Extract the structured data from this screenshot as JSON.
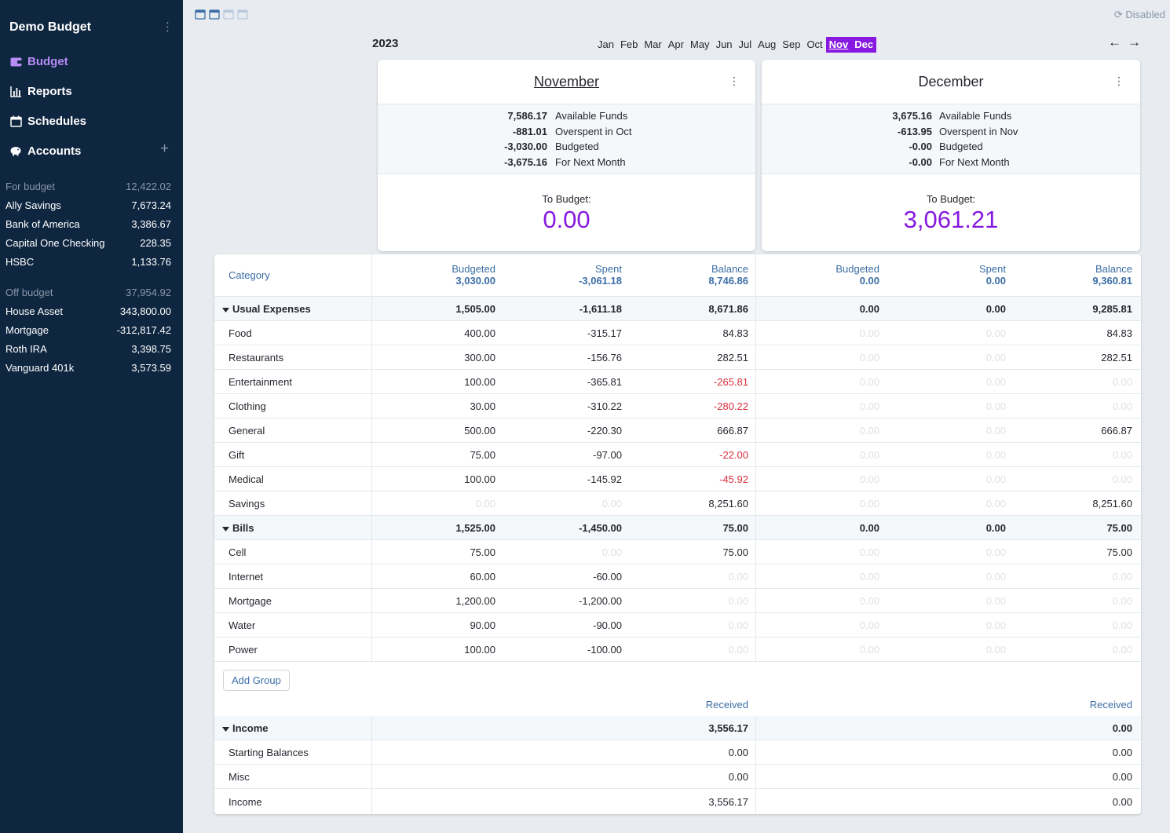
{
  "sidebar": {
    "title": "Demo Budget",
    "nav": [
      {
        "label": "Budget",
        "icon": "wallet-icon"
      },
      {
        "label": "Reports",
        "icon": "bar-chart-icon"
      },
      {
        "label": "Schedules",
        "icon": "calendar-icon"
      },
      {
        "label": "Accounts",
        "icon": "piggy-bank-icon"
      }
    ],
    "for_budget": {
      "label": "For budget",
      "total": "12,422.02",
      "accounts": [
        {
          "name": "Ally Savings",
          "balance": "7,673.24"
        },
        {
          "name": "Bank of America",
          "balance": "3,386.67"
        },
        {
          "name": "Capital One Checking",
          "balance": "228.35"
        },
        {
          "name": "HSBC",
          "balance": "1,133.76"
        }
      ]
    },
    "off_budget": {
      "label": "Off budget",
      "total": "37,954.92",
      "accounts": [
        {
          "name": "House Asset",
          "balance": "343,800.00"
        },
        {
          "name": "Mortgage",
          "balance": "-312,817.42"
        },
        {
          "name": "Roth IRA",
          "balance": "3,398.75"
        },
        {
          "name": "Vanguard 401k",
          "balance": "3,573.59"
        }
      ]
    }
  },
  "toolbar": {
    "sync_status": "Disabled"
  },
  "year": "2023",
  "months": [
    "Jan",
    "Feb",
    "Mar",
    "Apr",
    "May",
    "Jun",
    "Jul",
    "Aug",
    "Sep",
    "Oct",
    "Nov",
    "Dec"
  ],
  "selected_months": [
    "Nov",
    "Dec"
  ],
  "cards": [
    {
      "month": "November",
      "available": "7,586.17",
      "available_label": "Available Funds",
      "overspent": "-881.01",
      "overspent_label": "Overspent in Oct",
      "budgeted": "-3,030.00",
      "budgeted_label": "Budgeted",
      "next": "-3,675.16",
      "next_label": "For Next Month",
      "to_budget_label": "To Budget:",
      "to_budget": "0.00"
    },
    {
      "month": "December",
      "available": "3,675.16",
      "available_label": "Available Funds",
      "overspent": "-613.95",
      "overspent_label": "Overspent in Nov",
      "budgeted": "-0.00",
      "budgeted_label": "Budgeted",
      "next": "-0.00",
      "next_label": "For Next Month",
      "to_budget_label": "To Budget:",
      "to_budget": "3,061.21"
    }
  ],
  "table": {
    "category_header": "Category",
    "column_labels": {
      "budgeted": "Budgeted",
      "spent": "Spent",
      "balance": "Balance",
      "received": "Received"
    },
    "totals": [
      {
        "budgeted": "3,030.00",
        "spent": "-3,061.18",
        "balance": "8,746.86"
      },
      {
        "budgeted": "0.00",
        "spent": "0.00",
        "balance": "9,360.81"
      }
    ],
    "rows": [
      {
        "name": "Usual Expenses",
        "group": true,
        "m1": [
          "1,505.00",
          "-1,611.18",
          "8,671.86"
        ],
        "m2": [
          "0.00",
          "0.00",
          "9,285.81"
        ]
      },
      {
        "name": "Food",
        "m1": [
          "400.00",
          "-315.17",
          "84.83"
        ],
        "m2": [
          "0.00",
          "0.00",
          "84.83"
        ]
      },
      {
        "name": "Restaurants",
        "m1": [
          "300.00",
          "-156.76",
          "282.51"
        ],
        "m2": [
          "0.00",
          "0.00",
          "282.51"
        ]
      },
      {
        "name": "Entertainment",
        "m1": [
          "100.00",
          "-365.81",
          "-265.81"
        ],
        "m2": [
          "0.00",
          "0.00",
          "0.00"
        ]
      },
      {
        "name": "Clothing",
        "m1": [
          "30.00",
          "-310.22",
          "-280.22"
        ],
        "m2": [
          "0.00",
          "0.00",
          "0.00"
        ]
      },
      {
        "name": "General",
        "m1": [
          "500.00",
          "-220.30",
          "666.87"
        ],
        "m2": [
          "0.00",
          "0.00",
          "666.87"
        ]
      },
      {
        "name": "Gift",
        "m1": [
          "75.00",
          "-97.00",
          "-22.00"
        ],
        "m2": [
          "0.00",
          "0.00",
          "0.00"
        ]
      },
      {
        "name": "Medical",
        "m1": [
          "100.00",
          "-145.92",
          "-45.92"
        ],
        "m2": [
          "0.00",
          "0.00",
          "0.00"
        ]
      },
      {
        "name": "Savings",
        "m1": [
          "0.00",
          "0.00",
          "8,251.60"
        ],
        "m2": [
          "0.00",
          "0.00",
          "8,251.60"
        ]
      },
      {
        "name": "Bills",
        "group": true,
        "m1": [
          "1,525.00",
          "-1,450.00",
          "75.00"
        ],
        "m2": [
          "0.00",
          "0.00",
          "75.00"
        ]
      },
      {
        "name": "Cell",
        "m1": [
          "75.00",
          "0.00",
          "75.00"
        ],
        "m2": [
          "0.00",
          "0.00",
          "75.00"
        ]
      },
      {
        "name": "Internet",
        "m1": [
          "60.00",
          "-60.00",
          "0.00"
        ],
        "m2": [
          "0.00",
          "0.00",
          "0.00"
        ]
      },
      {
        "name": "Mortgage",
        "m1": [
          "1,200.00",
          "-1,200.00",
          "0.00"
        ],
        "m2": [
          "0.00",
          "0.00",
          "0.00"
        ]
      },
      {
        "name": "Water",
        "m1": [
          "90.00",
          "-90.00",
          "0.00"
        ],
        "m2": [
          "0.00",
          "0.00",
          "0.00"
        ]
      },
      {
        "name": "Power",
        "m1": [
          "100.00",
          "-100.00",
          "0.00"
        ],
        "m2": [
          "0.00",
          "0.00",
          "0.00"
        ]
      }
    ],
    "add_group_label": "Add Group",
    "income_rows": [
      {
        "name": "Income",
        "group": true,
        "m1": "3,556.17",
        "m2": "0.00"
      },
      {
        "name": "Starting Balances",
        "m1": "0.00",
        "m2": "0.00"
      },
      {
        "name": "Misc",
        "m1": "0.00",
        "m2": "0.00"
      },
      {
        "name": "Income",
        "m1": "3,556.17",
        "m2": "0.00"
      }
    ]
  },
  "colors": {
    "sidebar_bg": "#0f2640",
    "accent": "#8719e0",
    "negative": "#d92e3c",
    "header_blue": "#3b6ea5"
  }
}
